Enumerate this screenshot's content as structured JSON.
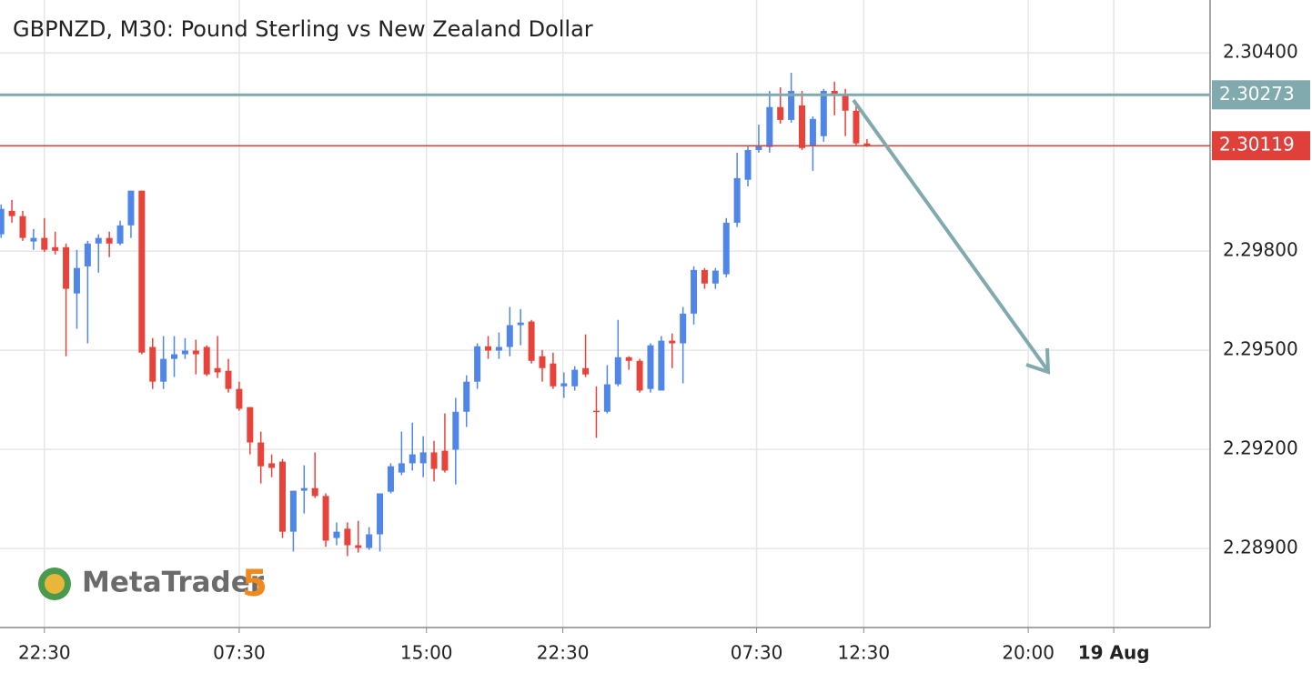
{
  "chart_data": {
    "type": "candlestick",
    "title": "GBPNZD, M30: Pound Sterling vs New Zealand Dollar",
    "up_color": "#4f86e8",
    "down_color": "#e8433a",
    "grid": true,
    "watermark": {
      "text": "MetaTrader",
      "version": "5"
    },
    "open": [
      2.29851,
      2.29922,
      2.29906,
      2.29829,
      2.2984,
      2.29812,
      2.29812,
      2.29672,
      2.29754,
      2.29823,
      2.2984,
      2.29823,
      2.29878,
      2.29983,
      2.2951,
      2.29405,
      2.29474,
      2.29488,
      2.29499,
      2.2951,
      2.29446,
      2.29438,
      2.29383,
      2.29328,
      2.29221,
      2.29158,
      2.29163,
      2.28951,
      2.29075,
      2.29083,
      2.29059,
      2.28932,
      2.2896,
      2.2891,
      2.28902,
      2.28943,
      2.29072,
      2.2913,
      2.29158,
      2.29158,
      2.29191,
      2.29196,
      2.29199,
      2.29314,
      2.29405,
      2.29512,
      2.29499,
      2.2951,
      2.29576,
      2.29587,
      2.29482,
      2.2946,
      2.29391,
      2.29391,
      2.29446,
      2.29317,
      2.29314,
      2.29397,
      2.29479,
      2.29468,
      2.29383,
      2.29378,
      2.29529,
      2.29521,
      2.29611,
      2.29743,
      2.29702,
      2.2973,
      2.29886,
      2.30016,
      2.30106,
      2.30115,
      2.30236,
      2.30197,
      2.30241,
      2.3012,
      2.30148,
      2.30285,
      2.30271,
      2.30225,
      2.30126
    ],
    "high": [
      2.29941,
      2.29955,
      2.29922,
      2.29867,
      2.299,
      2.29859,
      2.29823,
      2.29804,
      2.29831,
      2.29851,
      2.29859,
      2.29892,
      2.29983,
      2.29983,
      2.29537,
      2.29543,
      2.29543,
      2.29537,
      2.29532,
      2.29515,
      2.29543,
      2.29474,
      2.29405,
      2.29328,
      2.29254,
      2.29185,
      2.29171,
      2.29075,
      2.29152,
      2.29191,
      2.29067,
      2.28979,
      2.28979,
      2.28984,
      2.28965,
      2.29067,
      2.29158,
      2.29254,
      2.29281,
      2.2924,
      2.29226,
      2.29309,
      2.29356,
      2.29424,
      2.29521,
      2.29543,
      2.29554,
      2.29631,
      2.29625,
      2.29592,
      2.29501,
      2.29493,
      2.29433,
      2.29452,
      2.29548,
      2.29391,
      2.29455,
      2.29592,
      2.29482,
      2.29474,
      2.29521,
      2.29543,
      2.29551,
      2.29631,
      2.29754,
      2.29749,
      2.29749,
      2.299,
      2.30098,
      2.3012,
      2.30183,
      2.30285,
      2.30296,
      2.3034,
      2.30285,
      2.30208,
      2.30291,
      2.30313,
      2.30291,
      2.30252,
      2.30139
    ],
    "low": [
      2.2984,
      2.29886,
      2.29831,
      2.29804,
      2.29798,
      2.2979,
      2.29482,
      2.29565,
      2.29521,
      2.29735,
      2.29782,
      2.29818,
      2.2984,
      2.29488,
      2.29383,
      2.29383,
      2.29419,
      2.29474,
      2.29427,
      2.29422,
      2.29416,
      2.29372,
      2.29317,
      2.29185,
      2.29097,
      2.29116,
      2.28932,
      2.28891,
      2.29006,
      2.29053,
      2.28905,
      2.2891,
      2.28877,
      2.28888,
      2.28896,
      2.28891,
      2.29067,
      2.29122,
      2.29136,
      2.29116,
      2.29103,
      2.2913,
      2.29094,
      2.29268,
      2.29383,
      2.29474,
      2.29474,
      2.29482,
      2.29515,
      2.2946,
      2.29405,
      2.29383,
      2.29356,
      2.29378,
      2.29419,
      2.29235,
      2.29309,
      2.29391,
      2.29441,
      2.29372,
      2.29372,
      2.29378,
      2.29446,
      2.294,
      2.29578,
      2.29686,
      2.29686,
      2.29721,
      2.29873,
      2.29996,
      2.30098,
      2.30098,
      2.30186,
      2.30189,
      2.30106,
      2.30043,
      2.30131,
      2.30211,
      2.30148,
      2.3012,
      2.30115
    ],
    "close": [
      2.29928,
      2.29906,
      2.2984,
      2.2984,
      2.29804,
      2.29801,
      2.29686,
      2.29749,
      2.29823,
      2.2984,
      2.29823,
      2.29878,
      2.29983,
      2.29493,
      2.29405,
      2.29474,
      2.29488,
      2.29499,
      2.29488,
      2.29427,
      2.29433,
      2.29383,
      2.29323,
      2.29221,
      2.29149,
      2.29144,
      2.28951,
      2.29075,
      2.29083,
      2.29059,
      2.28924,
      2.28951,
      2.2891,
      2.28902,
      2.28943,
      2.29067,
      2.29149,
      2.29158,
      2.29185,
      2.29191,
      2.29141,
      2.29136,
      2.29314,
      2.29405,
      2.29512,
      2.29499,
      2.2951,
      2.29576,
      2.29584,
      2.29468,
      2.29446,
      2.29391,
      2.294,
      2.29441,
      2.29427,
      2.29314,
      2.29397,
      2.29479,
      2.29468,
      2.29378,
      2.29515,
      2.29529,
      2.29521,
      2.29611,
      2.29743,
      2.29702,
      2.29741,
      2.29886,
      2.30021,
      2.30106,
      2.3012,
      2.30236,
      2.30197,
      2.30285,
      2.30112,
      2.302,
      2.30285,
      2.30271,
      2.30225,
      2.30126,
      2.3012
    ],
    "xlim": [
      -0.1,
      111.7
    ],
    "xticks": [
      {
        "value": 4,
        "label": "22:30"
      },
      {
        "value": 22,
        "label": "07:30"
      },
      {
        "value": 39.3,
        "label": "15:00"
      },
      {
        "value": 51.9,
        "label": "22:30"
      },
      {
        "value": 69.8,
        "label": "07:30"
      },
      {
        "value": 79.7,
        "label": "12:30"
      },
      {
        "value": 94.9,
        "label": "20:00"
      },
      {
        "value": 102.8,
        "label": "19 Aug"
      }
    ],
    "ylim": [
      2.28661,
      2.3056
    ],
    "yticks": [
      {
        "value": 2.304,
        "label": "2.30400"
      },
      {
        "value": 2.298,
        "label": "2.29800"
      },
      {
        "value": 2.295,
        "label": "2.29500"
      },
      {
        "value": 2.292,
        "label": "2.29200"
      },
      {
        "value": 2.289,
        "label": "2.28900"
      }
    ],
    "levels": [
      {
        "value": 2.30273,
        "color": "#80aaad"
      },
      {
        "value": 2.30119,
        "color": "#e0403a"
      }
    ]
  }
}
